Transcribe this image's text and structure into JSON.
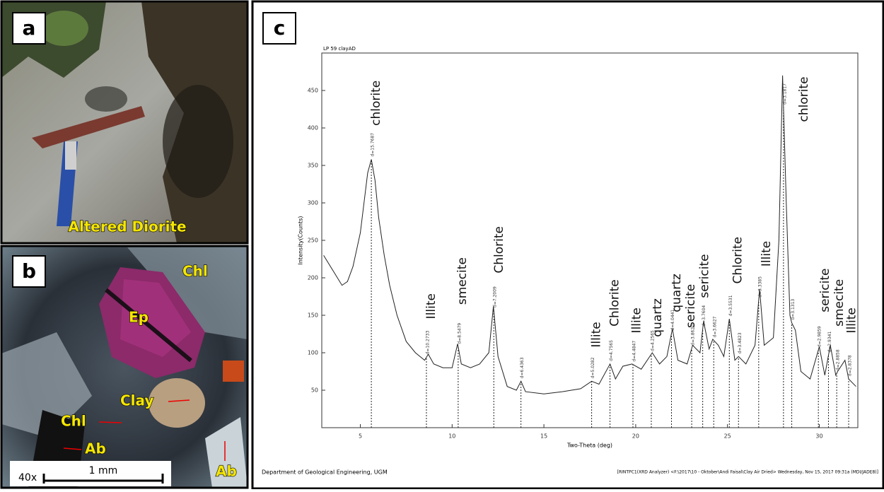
{
  "panels": {
    "a": {
      "label": "a",
      "caption": "Altered Diorite"
    },
    "b": {
      "label": "b",
      "minerals": [
        "Chl",
        "Ep",
        "Clay",
        "Chl",
        "Ab",
        "Ab"
      ],
      "magnification": "40x",
      "scale": "1 mm"
    },
    "c": {
      "label": "c",
      "footer_left": "Department of Geological Engineering, UGM",
      "footer_right": "[RINTPC1(XRD Analyzer) <F:\\2017\\10 - Oktober\\Andi Faisal\\Clay Air Dried> Wednesday, Nov 15, 2017 09:31a (MDI/JADE8)]"
    }
  },
  "chart_data": {
    "type": "line",
    "title": "LP 59 clayAD",
    "x_label": "Two-Theta (deg)",
    "y_label": "Intensity(Counts)",
    "color": "#222222",
    "x": [
      3,
      3.5,
      4,
      4.3,
      4.6,
      5,
      5.2,
      5.4,
      5.6,
      5.8,
      6,
      6.3,
      6.6,
      7,
      7.5,
      8,
      8.5,
      8.7,
      9,
      9.5,
      10,
      10.3,
      10.5,
      11,
      11.5,
      12,
      12.25,
      12.5,
      13,
      13.5,
      13.75,
      14,
      15,
      16,
      17,
      17.6,
      18,
      18.6,
      18.9,
      19.3,
      19.8,
      20.3,
      20.9,
      21.3,
      21.7,
      22,
      22.3,
      22.8,
      23.1,
      23.5,
      23.7,
      24,
      24.2,
      24.5,
      24.8,
      25.1,
      25.4,
      25.6,
      26,
      26.5,
      26.75,
      27,
      27.5,
      27.8,
      28,
      28.2,
      28.4,
      28.5,
      28.7,
      29,
      29.5,
      30,
      30.3,
      30.6,
      30.9,
      31,
      31.4,
      31.6,
      32
    ],
    "values": [
      230,
      210,
      190,
      195,
      215,
      260,
      300,
      340,
      358,
      330,
      280,
      230,
      190,
      150,
      115,
      100,
      90,
      98,
      85,
      80,
      80,
      112,
      85,
      80,
      85,
      100,
      162,
      95,
      55,
      50,
      62,
      48,
      45,
      48,
      52,
      62,
      58,
      85,
      65,
      82,
      85,
      78,
      100,
      85,
      95,
      132,
      90,
      85,
      110,
      100,
      142,
      105,
      118,
      110,
      95,
      145,
      90,
      95,
      85,
      110,
      185,
      110,
      120,
      250,
      470,
      300,
      150,
      140,
      130,
      75,
      65,
      108,
      70,
      110,
      70,
      75,
      90,
      65,
      55
    ],
    "xlim": [
      2.9,
      32.1
    ],
    "ylim": [
      0,
      500
    ],
    "xticks": [
      5,
      10,
      15,
      20,
      25,
      30
    ],
    "yticks": [
      50,
      100,
      150,
      200,
      250,
      300,
      350,
      400,
      450
    ],
    "d_labels": [
      {
        "x": 5.6,
        "label": "d=15.7687"
      },
      {
        "x": 8.6,
        "label": "d=10.2733"
      },
      {
        "x": 10.33,
        "label": "d=8.5479"
      },
      {
        "x": 12.27,
        "label": "d=7.2009"
      },
      {
        "x": 13.75,
        "label": "d=6.4363"
      },
      {
        "x": 17.6,
        "label": "d=5.0282"
      },
      {
        "x": 18.6,
        "label": "d=4.7565"
      },
      {
        "x": 19.85,
        "label": "d=4.4847"
      },
      {
        "x": 20.85,
        "label": "d=4.2565"
      },
      {
        "x": 21.95,
        "label": "d=4.0441"
      },
      {
        "x": 23.05,
        "label": "d=3.8620"
      },
      {
        "x": 23.65,
        "label": "d=3.7604"
      },
      {
        "x": 24.25,
        "label": "d=3.6627"
      },
      {
        "x": 25.1,
        "label": "d=3.5531"
      },
      {
        "x": 25.6,
        "label": "d=3.4823"
      },
      {
        "x": 26.7,
        "label": "d=3.3385"
      },
      {
        "x": 28.05,
        "label": "d=3.1817"
      },
      {
        "x": 28.5,
        "label": "d=3.1313"
      },
      {
        "x": 29.95,
        "label": "d=2.9859"
      },
      {
        "x": 30.5,
        "label": "d=2.9341"
      },
      {
        "x": 30.95,
        "label": "d=2.8858"
      },
      {
        "x": 31.6,
        "label": "d=2.8378"
      }
    ],
    "annotations": [
      {
        "x": 5.6,
        "y": 403,
        "text": "chlorite"
      },
      {
        "x": 8.6,
        "y": 145,
        "text": "Illite"
      },
      {
        "x": 10.3,
        "y": 164,
        "text": "smecite"
      },
      {
        "x": 12.3,
        "y": 206,
        "text": "Chlorite"
      },
      {
        "x": 17.6,
        "y": 107,
        "text": "Illite"
      },
      {
        "x": 18.6,
        "y": 135,
        "text": "Chlorite"
      },
      {
        "x": 19.8,
        "y": 126,
        "text": "Illite"
      },
      {
        "x": 20.93,
        "y": 121,
        "text": "quartz"
      },
      {
        "x": 21.97,
        "y": 154,
        "text": "quartz"
      },
      {
        "x": 22.74,
        "y": 133,
        "text": "sericite"
      },
      {
        "x": 23.5,
        "y": 173,
        "text": "sericite"
      },
      {
        "x": 25.3,
        "y": 192,
        "text": "Chlorite"
      },
      {
        "x": 26.86,
        "y": 215,
        "text": "Illite"
      },
      {
        "x": 28.9,
        "y": 408,
        "text": "chlorite"
      },
      {
        "x": 30.06,
        "y": 154,
        "text": "sericite"
      },
      {
        "x": 30.83,
        "y": 135,
        "text": "smecite"
      },
      {
        "x": 31.5,
        "y": 126,
        "text": "Illite"
      }
    ]
  }
}
